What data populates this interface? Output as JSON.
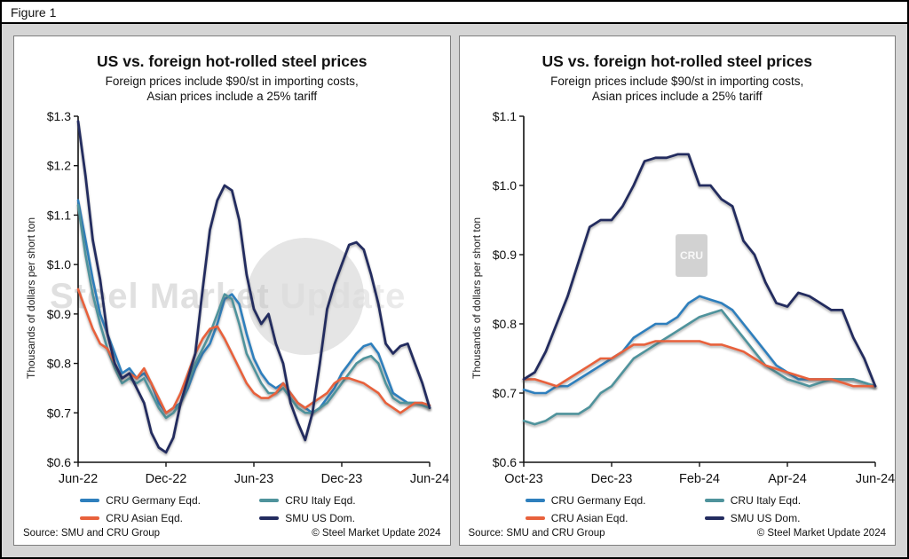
{
  "header": {
    "figure_label": "Figure 1"
  },
  "footer": {
    "source": "Source: SMU and CRU Group",
    "copyright": "© Steel Market Update 2024"
  },
  "colors": {
    "germany": "#2E7FBD",
    "italy": "#4F939C",
    "asian": "#E8613C",
    "smu": "#232C5F",
    "page_bg": "#D5D5D5",
    "panel_bg": "#FFFFFF",
    "axis": "#111111"
  },
  "chart_data": [
    {
      "type": "line",
      "title": "US vs. foreign hot-rolled steel prices",
      "subtitle1": "Foreign prices include $90/st in importing costs,",
      "subtitle2": "Asian prices include a 25% tariff",
      "ylabel": "Thousands of dollars per short ton",
      "grid": false,
      "legend_position": "bottom",
      "ylim": [
        0.6,
        1.3
      ],
      "ytick_values": [
        0.6,
        0.7,
        0.8,
        0.9,
        1.0,
        1.1,
        1.2,
        1.3
      ],
      "ytick_labels": [
        "$0.6",
        "$0.7",
        "$0.8",
        "$0.9",
        "$1.0",
        "$1.1",
        "$1.2",
        "$1.3"
      ],
      "x_start": 0,
      "x_step": 0.5,
      "x_unit": "months since Jun-22",
      "xtick_values": [
        0,
        6,
        12,
        18,
        24
      ],
      "xtick_labels": [
        "Jun-22",
        "Dec-22",
        "Jun-23",
        "Dec-23",
        "Jun-24"
      ],
      "watermark": {
        "style": "text-circle",
        "text": "Steel Market Update"
      },
      "series": [
        {
          "name": "CRU Germany Eqd.",
          "color": "#2E7FBD",
          "width": 2.6,
          "y": [
            1.13,
            1.05,
            0.97,
            0.9,
            0.86,
            0.82,
            0.78,
            0.79,
            0.77,
            0.78,
            0.76,
            0.72,
            0.7,
            0.71,
            0.72,
            0.75,
            0.79,
            0.82,
            0.84,
            0.88,
            0.93,
            0.94,
            0.92,
            0.86,
            0.81,
            0.78,
            0.76,
            0.75,
            0.76,
            0.74,
            0.72,
            0.71,
            0.7,
            0.71,
            0.73,
            0.75,
            0.78,
            0.8,
            0.82,
            0.835,
            0.84,
            0.82,
            0.78,
            0.74,
            0.73,
            0.72,
            0.72,
            0.72,
            0.71
          ]
        },
        {
          "name": "CRU Italy Eqd.",
          "color": "#4F939C",
          "width": 2.6,
          "y": [
            1.12,
            1.02,
            0.94,
            0.88,
            0.83,
            0.79,
            0.76,
            0.77,
            0.76,
            0.77,
            0.74,
            0.71,
            0.69,
            0.7,
            0.72,
            0.76,
            0.8,
            0.83,
            0.86,
            0.9,
            0.94,
            0.93,
            0.88,
            0.82,
            0.79,
            0.76,
            0.74,
            0.74,
            0.75,
            0.73,
            0.71,
            0.7,
            0.7,
            0.71,
            0.72,
            0.74,
            0.76,
            0.78,
            0.8,
            0.81,
            0.815,
            0.8,
            0.76,
            0.73,
            0.72,
            0.72,
            0.72,
            0.715,
            0.71
          ]
        },
        {
          "name": "CRU Asian Eqd.",
          "color": "#E8613C",
          "width": 2.6,
          "y": [
            0.95,
            0.91,
            0.87,
            0.84,
            0.83,
            0.8,
            0.77,
            0.78,
            0.77,
            0.79,
            0.76,
            0.73,
            0.7,
            0.71,
            0.74,
            0.78,
            0.82,
            0.85,
            0.87,
            0.875,
            0.85,
            0.82,
            0.79,
            0.76,
            0.74,
            0.73,
            0.73,
            0.74,
            0.76,
            0.74,
            0.72,
            0.71,
            0.72,
            0.73,
            0.74,
            0.76,
            0.77,
            0.77,
            0.765,
            0.76,
            0.75,
            0.74,
            0.72,
            0.71,
            0.7,
            0.71,
            0.72,
            0.72,
            0.715
          ]
        },
        {
          "name": "SMU US Dom.",
          "color": "#232C5F",
          "width": 2.8,
          "y": [
            1.29,
            1.18,
            1.05,
            0.97,
            0.86,
            0.8,
            0.77,
            0.78,
            0.75,
            0.72,
            0.66,
            0.63,
            0.62,
            0.65,
            0.72,
            0.77,
            0.82,
            0.95,
            1.07,
            1.13,
            1.16,
            1.15,
            1.09,
            0.98,
            0.91,
            0.88,
            0.9,
            0.84,
            0.8,
            0.72,
            0.68,
            0.645,
            0.7,
            0.8,
            0.91,
            0.96,
            1.0,
            1.04,
            1.045,
            1.03,
            0.98,
            0.92,
            0.84,
            0.82,
            0.835,
            0.84,
            0.8,
            0.76,
            0.71
          ]
        }
      ]
    },
    {
      "type": "line",
      "title": "US vs. foreign hot-rolled steel prices",
      "subtitle1": "Foreign prices include $90/st in importing costs,",
      "subtitle2": "Asian prices include a 25% tariff",
      "ylabel": "Thousands of dollars per short ton",
      "grid": false,
      "legend_position": "bottom",
      "ylim": [
        0.6,
        1.1
      ],
      "ytick_values": [
        0.6,
        0.7,
        0.8,
        0.9,
        1.0,
        1.1
      ],
      "ytick_labels": [
        "$0.6",
        "$0.7",
        "$0.8",
        "$0.9",
        "$1.0",
        "$1.1"
      ],
      "x_start": 0,
      "x_step": 0.25,
      "x_unit": "months since Oct-23",
      "xtick_values": [
        0,
        2,
        4,
        6,
        8
      ],
      "xtick_labels": [
        "Oct-23",
        "Dec-23",
        "Feb-24",
        "Apr-24",
        "Jun-24"
      ],
      "watermark": {
        "style": "badge",
        "text": "CRU"
      },
      "series": [
        {
          "name": "CRU Germany Eqd.",
          "color": "#2E7FBD",
          "width": 2.6,
          "y": [
            0.705,
            0.7,
            0.7,
            0.71,
            0.71,
            0.72,
            0.73,
            0.74,
            0.75,
            0.76,
            0.78,
            0.79,
            0.8,
            0.8,
            0.81,
            0.83,
            0.84,
            0.835,
            0.83,
            0.82,
            0.8,
            0.78,
            0.76,
            0.74,
            0.73,
            0.72,
            0.72,
            0.72,
            0.72,
            0.72,
            0.72,
            0.715,
            0.71
          ]
        },
        {
          "name": "CRU Italy Eqd.",
          "color": "#4F939C",
          "width": 2.6,
          "y": [
            0.66,
            0.655,
            0.66,
            0.67,
            0.67,
            0.67,
            0.68,
            0.7,
            0.71,
            0.73,
            0.75,
            0.76,
            0.77,
            0.78,
            0.79,
            0.8,
            0.81,
            0.815,
            0.82,
            0.8,
            0.78,
            0.76,
            0.74,
            0.73,
            0.72,
            0.715,
            0.71,
            0.715,
            0.72,
            0.72,
            0.72,
            0.715,
            0.71
          ]
        },
        {
          "name": "CRU Asian Eqd.",
          "color": "#E8613C",
          "width": 2.6,
          "y": [
            0.72,
            0.72,
            0.715,
            0.71,
            0.72,
            0.73,
            0.74,
            0.75,
            0.75,
            0.76,
            0.77,
            0.77,
            0.775,
            0.775,
            0.775,
            0.775,
            0.775,
            0.77,
            0.77,
            0.765,
            0.76,
            0.75,
            0.74,
            0.735,
            0.73,
            0.725,
            0.72,
            0.72,
            0.72,
            0.715,
            0.71,
            0.71,
            0.71
          ]
        },
        {
          "name": "SMU US Dom.",
          "color": "#232C5F",
          "width": 2.8,
          "y": [
            0.72,
            0.73,
            0.76,
            0.8,
            0.84,
            0.89,
            0.94,
            0.95,
            0.95,
            0.97,
            1.0,
            1.035,
            1.04,
            1.04,
            1.045,
            1.045,
            1.0,
            1.0,
            0.98,
            0.97,
            0.92,
            0.9,
            0.86,
            0.83,
            0.825,
            0.845,
            0.84,
            0.83,
            0.82,
            0.82,
            0.78,
            0.75,
            0.71
          ]
        }
      ]
    }
  ]
}
